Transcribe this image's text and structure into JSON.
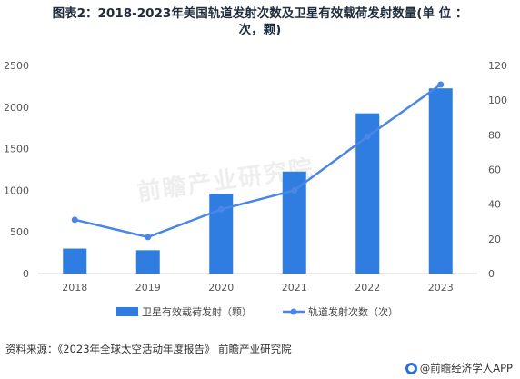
{
  "chart_data": {
    "type": "bar+line",
    "title_line1": "图表2：2018-2023年美国轨道发射次数及卫星有效载荷发射数量(单 位 ：",
    "title_line2": "次，颗)",
    "categories": [
      "2018",
      "2019",
      "2020",
      "2021",
      "2022",
      "2023"
    ],
    "series": [
      {
        "name": "卫星有效载荷发射（颗）",
        "type": "bar",
        "axis": "left",
        "color": "#2f7de1",
        "values": [
          300,
          280,
          960,
          1225,
          1925,
          2225
        ]
      },
      {
        "name": "轨道发射次数（次）",
        "type": "line",
        "axis": "right",
        "color": "#4a86e8",
        "values": [
          31,
          21,
          37,
          48,
          79,
          109
        ]
      }
    ],
    "y_left": {
      "min": 0,
      "max": 2500,
      "ticks": [
        "0",
        "500",
        "1000",
        "1500",
        "2000",
        "2500"
      ]
    },
    "y_right": {
      "min": 0,
      "max": 120,
      "ticks": [
        "0",
        "20",
        "40",
        "60",
        "80",
        "100",
        "120"
      ]
    },
    "legend_position": "bottom",
    "grid": false
  },
  "watermark": "前瞻产业研究院",
  "footer": {
    "source": "资料来源：《2023年全球太空活动年度报告》 前瞻产业研究院",
    "brand": "@前瞻经济学人APP"
  }
}
